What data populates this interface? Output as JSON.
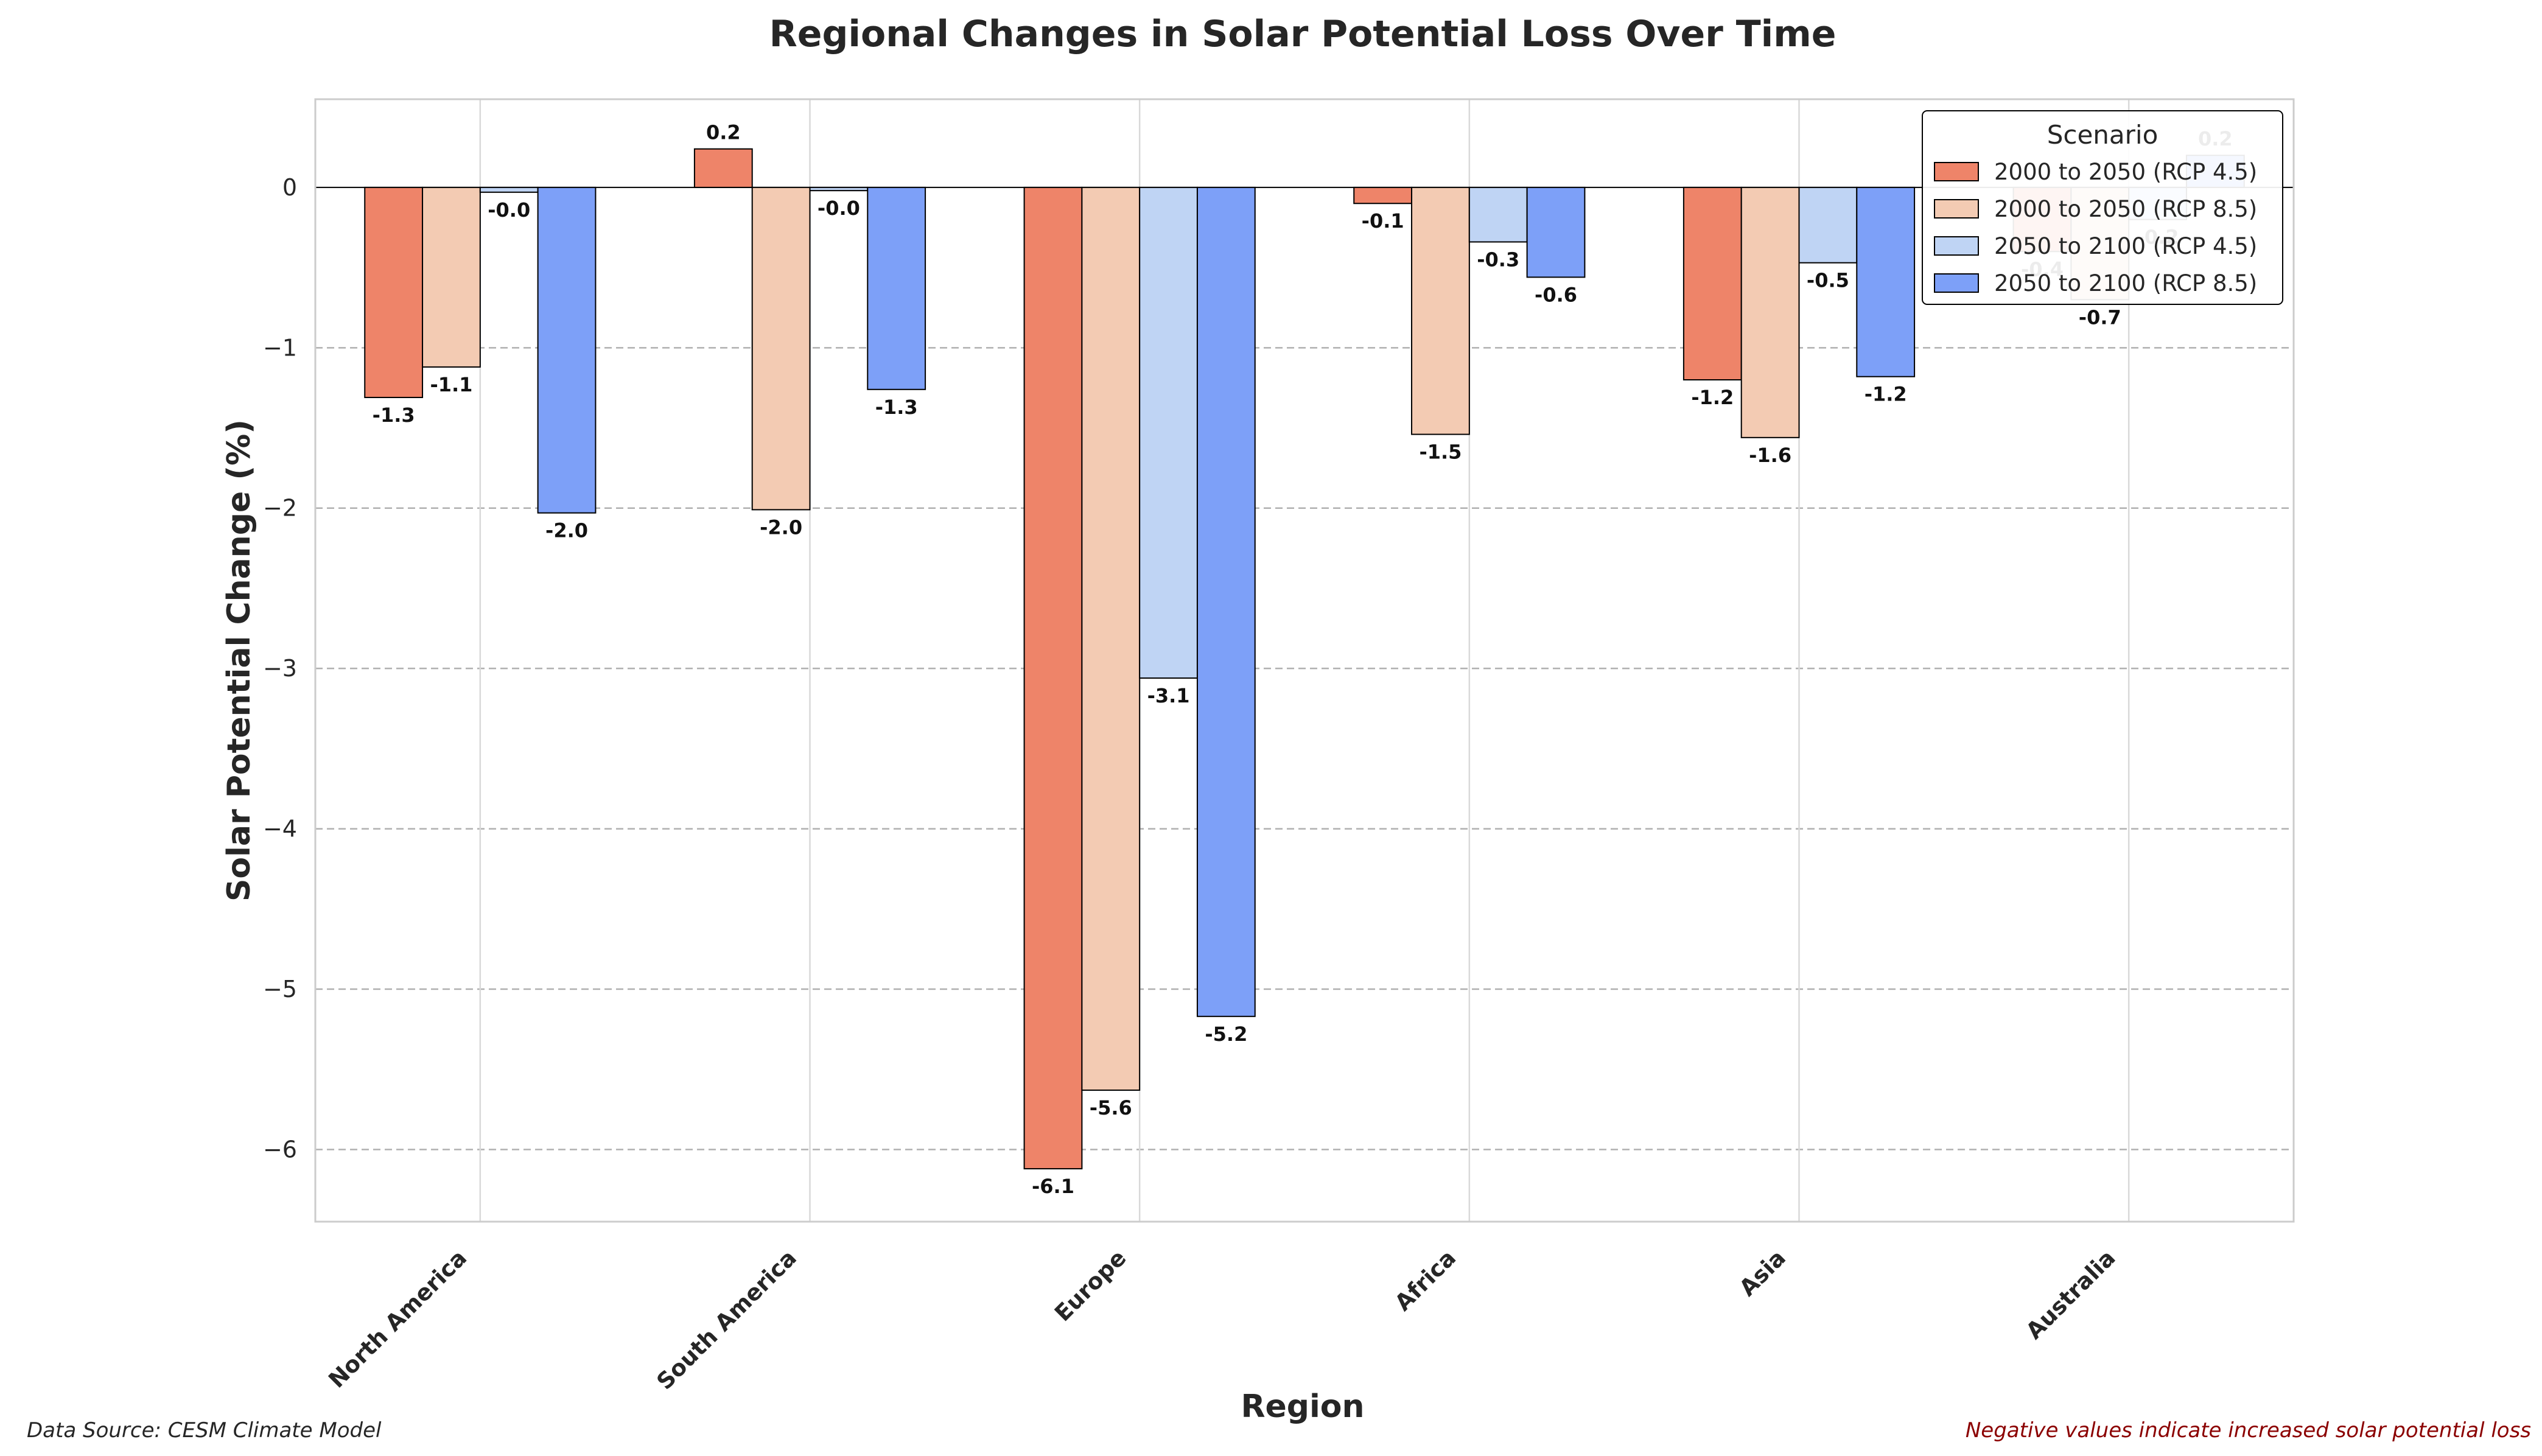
{
  "chart_data": {
    "type": "bar",
    "title": "Regional Changes in Solar Potential Loss Over Time",
    "xlabel": "Region",
    "ylabel": "Solar Potential Change (%)",
    "categories": [
      "North America",
      "South America",
      "Europe",
      "Africa",
      "Asia",
      "Australia"
    ],
    "ylim": [
      -6.45,
      0.55
    ],
    "yticks": [
      0,
      -1,
      -2,
      -3,
      -4,
      -5,
      -6
    ],
    "ytick_labels": [
      "0",
      "−1",
      "−2",
      "−3",
      "−4",
      "−5",
      "−6"
    ],
    "grid": true,
    "legend": {
      "title": "Scenario",
      "placement": "top-right"
    },
    "series": [
      {
        "name": "2000 to 2050 (RCP 4.5)",
        "color": "#EE8469",
        "values": [
          -1.31,
          0.24,
          -6.12,
          -0.1,
          -1.2,
          -0.4
        ],
        "labels": [
          "-1.3",
          "0.2",
          "-6.1",
          "-0.1",
          "-1.2",
          "-0.4"
        ]
      },
      {
        "name": "2000 to 2050 (RCP 8.5)",
        "color": "#F3CBB3",
        "values": [
          -1.12,
          -2.01,
          -5.63,
          -1.54,
          -1.56,
          -0.7
        ],
        "labels": [
          "-1.1",
          "-2.0",
          "-5.6",
          "-1.5",
          "-1.6",
          "-0.7"
        ]
      },
      {
        "name": "2050 to 2100 (RCP 4.5)",
        "color": "#BFD4F4",
        "values": [
          -0.03,
          -0.02,
          -3.06,
          -0.34,
          -0.47,
          -0.2
        ],
        "labels": [
          "-0.0",
          "-0.0",
          "-3.1",
          "-0.3",
          "-0.5",
          "-0.2"
        ]
      },
      {
        "name": "2050 to 2100 (RCP 8.5)",
        "color": "#7DA0F8",
        "values": [
          -2.03,
          -1.26,
          -5.17,
          -0.56,
          -1.18,
          0.2
        ],
        "labels": [
          "-2.0",
          "-1.3",
          "-5.2",
          "-0.6",
          "-1.2",
          "0.2"
        ]
      }
    ]
  },
  "footer": {
    "source": "Data Source: CESM Climate Model",
    "note": "Negative values indicate increased solar potential loss"
  },
  "colors": {
    "note_text": "#8B0000",
    "axis_text": "#262626"
  }
}
